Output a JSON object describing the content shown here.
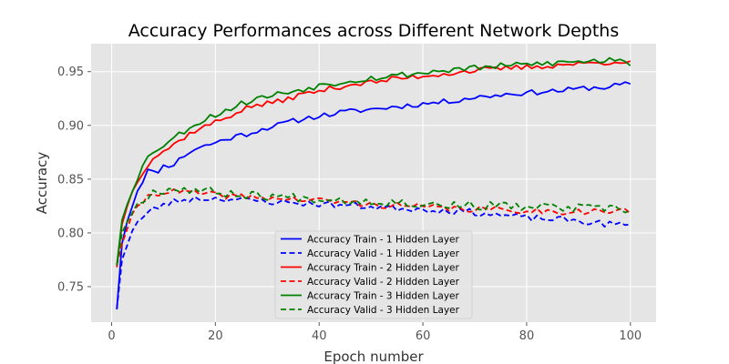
{
  "chart_data": {
    "type": "line",
    "title": "Accuracy Performances across Different Network Depths",
    "xlabel": "Epoch number",
    "ylabel": "Accuracy",
    "xlim": [
      -3.95,
      104.95
    ],
    "ylim": [
      0.717,
      0.976
    ],
    "xticks": [
      0,
      20,
      40,
      60,
      80,
      100
    ],
    "yticks": [
      0.75,
      0.8,
      0.85,
      0.9,
      0.95
    ],
    "ytick_labels": [
      "0.75",
      "0.80",
      "0.85",
      "0.90",
      "0.95"
    ],
    "grid": true,
    "background": "#e5e5e5",
    "legend_position": "lower-center",
    "series": [
      {
        "name": "Accuracy Train - 1 Hidden Layer",
        "color": "#0000ff",
        "dash": "solid",
        "anchors": [
          [
            1,
            0.729
          ],
          [
            2,
            0.79
          ],
          [
            3,
            0.812
          ],
          [
            4,
            0.826
          ],
          [
            5,
            0.84
          ],
          [
            6,
            0.849
          ],
          [
            7,
            0.858
          ],
          [
            8,
            0.856
          ],
          [
            9,
            0.858
          ],
          [
            10,
            0.862
          ],
          [
            12,
            0.864
          ],
          [
            14,
            0.872
          ],
          [
            16,
            0.878
          ],
          [
            18,
            0.881
          ],
          [
            20,
            0.884
          ],
          [
            22,
            0.887
          ],
          [
            24,
            0.89
          ],
          [
            26,
            0.892
          ],
          [
            28,
            0.895
          ],
          [
            30,
            0.898
          ],
          [
            32,
            0.9
          ],
          [
            34,
            0.903
          ],
          [
            36,
            0.905
          ],
          [
            38,
            0.907
          ],
          [
            40,
            0.909
          ],
          [
            42,
            0.91
          ],
          [
            44,
            0.912
          ],
          [
            46,
            0.913
          ],
          [
            48,
            0.914
          ],
          [
            50,
            0.915
          ],
          [
            52,
            0.916
          ],
          [
            54,
            0.917
          ],
          [
            56,
            0.918
          ],
          [
            58,
            0.919
          ],
          [
            60,
            0.92
          ],
          [
            62,
            0.921
          ],
          [
            64,
            0.922
          ],
          [
            66,
            0.923
          ],
          [
            68,
            0.925
          ],
          [
            70,
            0.926
          ],
          [
            72,
            0.927
          ],
          [
            74,
            0.928
          ],
          [
            76,
            0.929
          ],
          [
            78,
            0.93
          ],
          [
            80,
            0.93
          ],
          [
            82,
            0.931
          ],
          [
            84,
            0.932
          ],
          [
            86,
            0.932
          ],
          [
            88,
            0.933
          ],
          [
            90,
            0.934
          ],
          [
            92,
            0.935
          ],
          [
            94,
            0.935
          ],
          [
            96,
            0.936
          ],
          [
            98,
            0.938
          ],
          [
            100,
            0.938
          ]
        ],
        "jitter": 0.0025,
        "seed": 11
      },
      {
        "name": "Accuracy Valid - 1 Hidden Layer",
        "color": "#0000ff",
        "dash": "dashed",
        "anchors": [
          [
            1,
            0.729
          ],
          [
            2,
            0.775
          ],
          [
            3,
            0.79
          ],
          [
            4,
            0.803
          ],
          [
            5,
            0.81
          ],
          [
            6,
            0.814
          ],
          [
            7,
            0.818
          ],
          [
            8,
            0.822
          ],
          [
            10,
            0.826
          ],
          [
            12,
            0.829
          ],
          [
            14,
            0.831
          ],
          [
            16,
            0.832
          ],
          [
            18,
            0.832
          ],
          [
            20,
            0.832
          ],
          [
            22,
            0.832
          ],
          [
            24,
            0.831
          ],
          [
            26,
            0.83
          ],
          [
            28,
            0.83
          ],
          [
            30,
            0.829
          ],
          [
            32,
            0.829
          ],
          [
            34,
            0.828
          ],
          [
            36,
            0.828
          ],
          [
            38,
            0.827
          ],
          [
            40,
            0.827
          ],
          [
            44,
            0.826
          ],
          [
            48,
            0.825
          ],
          [
            52,
            0.824
          ],
          [
            56,
            0.823
          ],
          [
            60,
            0.822
          ],
          [
            64,
            0.821
          ],
          [
            68,
            0.82
          ],
          [
            72,
            0.818
          ],
          [
            76,
            0.816
          ],
          [
            80,
            0.814
          ],
          [
            84,
            0.813
          ],
          [
            88,
            0.812
          ],
          [
            92,
            0.81
          ],
          [
            96,
            0.808
          ],
          [
            100,
            0.807
          ]
        ],
        "jitter": 0.003,
        "seed": 23
      },
      {
        "name": "Accuracy Train - 2 Hidden Layer",
        "color": "#ff0000",
        "dash": "solid",
        "anchors": [
          [
            1,
            0.768
          ],
          [
            2,
            0.808
          ],
          [
            3,
            0.826
          ],
          [
            4,
            0.838
          ],
          [
            5,
            0.849
          ],
          [
            6,
            0.857
          ],
          [
            7,
            0.864
          ],
          [
            8,
            0.87
          ],
          [
            10,
            0.876
          ],
          [
            12,
            0.882
          ],
          [
            14,
            0.889
          ],
          [
            16,
            0.895
          ],
          [
            18,
            0.899
          ],
          [
            20,
            0.903
          ],
          [
            22,
            0.907
          ],
          [
            24,
            0.912
          ],
          [
            26,
            0.916
          ],
          [
            28,
            0.919
          ],
          [
            30,
            0.92
          ],
          [
            32,
            0.922
          ],
          [
            34,
            0.925
          ],
          [
            36,
            0.928
          ],
          [
            38,
            0.93
          ],
          [
            40,
            0.932
          ],
          [
            42,
            0.934
          ],
          [
            44,
            0.936
          ],
          [
            46,
            0.938
          ],
          [
            48,
            0.939
          ],
          [
            50,
            0.94
          ],
          [
            52,
            0.941
          ],
          [
            54,
            0.943
          ],
          [
            56,
            0.944
          ],
          [
            58,
            0.945
          ],
          [
            60,
            0.946
          ],
          [
            62,
            0.947
          ],
          [
            64,
            0.948
          ],
          [
            66,
            0.949
          ],
          [
            68,
            0.95
          ],
          [
            70,
            0.951
          ],
          [
            72,
            0.952
          ],
          [
            74,
            0.952
          ],
          [
            76,
            0.953
          ],
          [
            78,
            0.954
          ],
          [
            80,
            0.954
          ],
          [
            82,
            0.955
          ],
          [
            84,
            0.955
          ],
          [
            86,
            0.956
          ],
          [
            88,
            0.957
          ],
          [
            90,
            0.957
          ],
          [
            92,
            0.958
          ],
          [
            94,
            0.958
          ],
          [
            96,
            0.959
          ],
          [
            98,
            0.96
          ],
          [
            100,
            0.958
          ]
        ],
        "jitter": 0.0025,
        "seed": 37
      },
      {
        "name": "Accuracy Valid - 2 Hidden Layer",
        "color": "#ff0000",
        "dash": "dashed",
        "anchors": [
          [
            1,
            0.77
          ],
          [
            2,
            0.79
          ],
          [
            3,
            0.805
          ],
          [
            4,
            0.815
          ],
          [
            5,
            0.823
          ],
          [
            6,
            0.829
          ],
          [
            7,
            0.834
          ],
          [
            8,
            0.837
          ],
          [
            10,
            0.838
          ],
          [
            12,
            0.838
          ],
          [
            14,
            0.838
          ],
          [
            16,
            0.837
          ],
          [
            18,
            0.836
          ],
          [
            20,
            0.835
          ],
          [
            24,
            0.834
          ],
          [
            28,
            0.833
          ],
          [
            32,
            0.832
          ],
          [
            36,
            0.831
          ],
          [
            40,
            0.83
          ],
          [
            44,
            0.829
          ],
          [
            48,
            0.827
          ],
          [
            52,
            0.826
          ],
          [
            56,
            0.825
          ],
          [
            60,
            0.824
          ],
          [
            64,
            0.823
          ],
          [
            68,
            0.822
          ],
          [
            72,
            0.822
          ],
          [
            76,
            0.821
          ],
          [
            80,
            0.821
          ],
          [
            84,
            0.82
          ],
          [
            88,
            0.82
          ],
          [
            92,
            0.82
          ],
          [
            96,
            0.82
          ],
          [
            100,
            0.82
          ]
        ],
        "jitter": 0.003,
        "seed": 41
      },
      {
        "name": "Accuracy Train - 3 Hidden Layer",
        "color": "#008000",
        "dash": "solid",
        "anchors": [
          [
            1,
            0.77
          ],
          [
            2,
            0.812
          ],
          [
            3,
            0.828
          ],
          [
            4,
            0.841
          ],
          [
            5,
            0.852
          ],
          [
            6,
            0.862
          ],
          [
            7,
            0.87
          ],
          [
            8,
            0.876
          ],
          [
            10,
            0.882
          ],
          [
            12,
            0.888
          ],
          [
            14,
            0.895
          ],
          [
            16,
            0.901
          ],
          [
            18,
            0.906
          ],
          [
            20,
            0.91
          ],
          [
            22,
            0.914
          ],
          [
            24,
            0.918
          ],
          [
            26,
            0.922
          ],
          [
            28,
            0.925
          ],
          [
            30,
            0.927
          ],
          [
            32,
            0.929
          ],
          [
            34,
            0.931
          ],
          [
            36,
            0.933
          ],
          [
            38,
            0.935
          ],
          [
            40,
            0.937
          ],
          [
            42,
            0.939
          ],
          [
            44,
            0.94
          ],
          [
            46,
            0.942
          ],
          [
            48,
            0.943
          ],
          [
            50,
            0.944
          ],
          [
            52,
            0.945
          ],
          [
            54,
            0.946
          ],
          [
            56,
            0.947
          ],
          [
            58,
            0.948
          ],
          [
            60,
            0.949
          ],
          [
            62,
            0.95
          ],
          [
            64,
            0.951
          ],
          [
            66,
            0.952
          ],
          [
            68,
            0.953
          ],
          [
            70,
            0.953
          ],
          [
            72,
            0.954
          ],
          [
            74,
            0.955
          ],
          [
            76,
            0.955
          ],
          [
            78,
            0.956
          ],
          [
            80,
            0.957
          ],
          [
            82,
            0.957
          ],
          [
            84,
            0.958
          ],
          [
            86,
            0.958
          ],
          [
            88,
            0.959
          ],
          [
            90,
            0.959
          ],
          [
            92,
            0.96
          ],
          [
            94,
            0.96
          ],
          [
            96,
            0.961
          ],
          [
            98,
            0.963
          ],
          [
            100,
            0.957
          ]
        ],
        "jitter": 0.003,
        "seed": 53
      },
      {
        "name": "Accuracy Valid - 3 Hidden Layer",
        "color": "#008000",
        "dash": "dashed",
        "anchors": [
          [
            1,
            0.77
          ],
          [
            2,
            0.8
          ],
          [
            3,
            0.812
          ],
          [
            4,
            0.82
          ],
          [
            5,
            0.826
          ],
          [
            6,
            0.831
          ],
          [
            7,
            0.835
          ],
          [
            8,
            0.838
          ],
          [
            10,
            0.84
          ],
          [
            12,
            0.841
          ],
          [
            14,
            0.841
          ],
          [
            16,
            0.84
          ],
          [
            18,
            0.839
          ],
          [
            20,
            0.838
          ],
          [
            24,
            0.836
          ],
          [
            28,
            0.835
          ],
          [
            32,
            0.834
          ],
          [
            36,
            0.833
          ],
          [
            40,
            0.832
          ],
          [
            44,
            0.831
          ],
          [
            48,
            0.83
          ],
          [
            52,
            0.829
          ],
          [
            56,
            0.828
          ],
          [
            60,
            0.827
          ],
          [
            64,
            0.826
          ],
          [
            68,
            0.826
          ],
          [
            72,
            0.825
          ],
          [
            76,
            0.825
          ],
          [
            80,
            0.824
          ],
          [
            84,
            0.824
          ],
          [
            88,
            0.823
          ],
          [
            92,
            0.823
          ],
          [
            96,
            0.822
          ],
          [
            100,
            0.821
          ]
        ],
        "jitter": 0.004,
        "seed": 67
      }
    ]
  }
}
